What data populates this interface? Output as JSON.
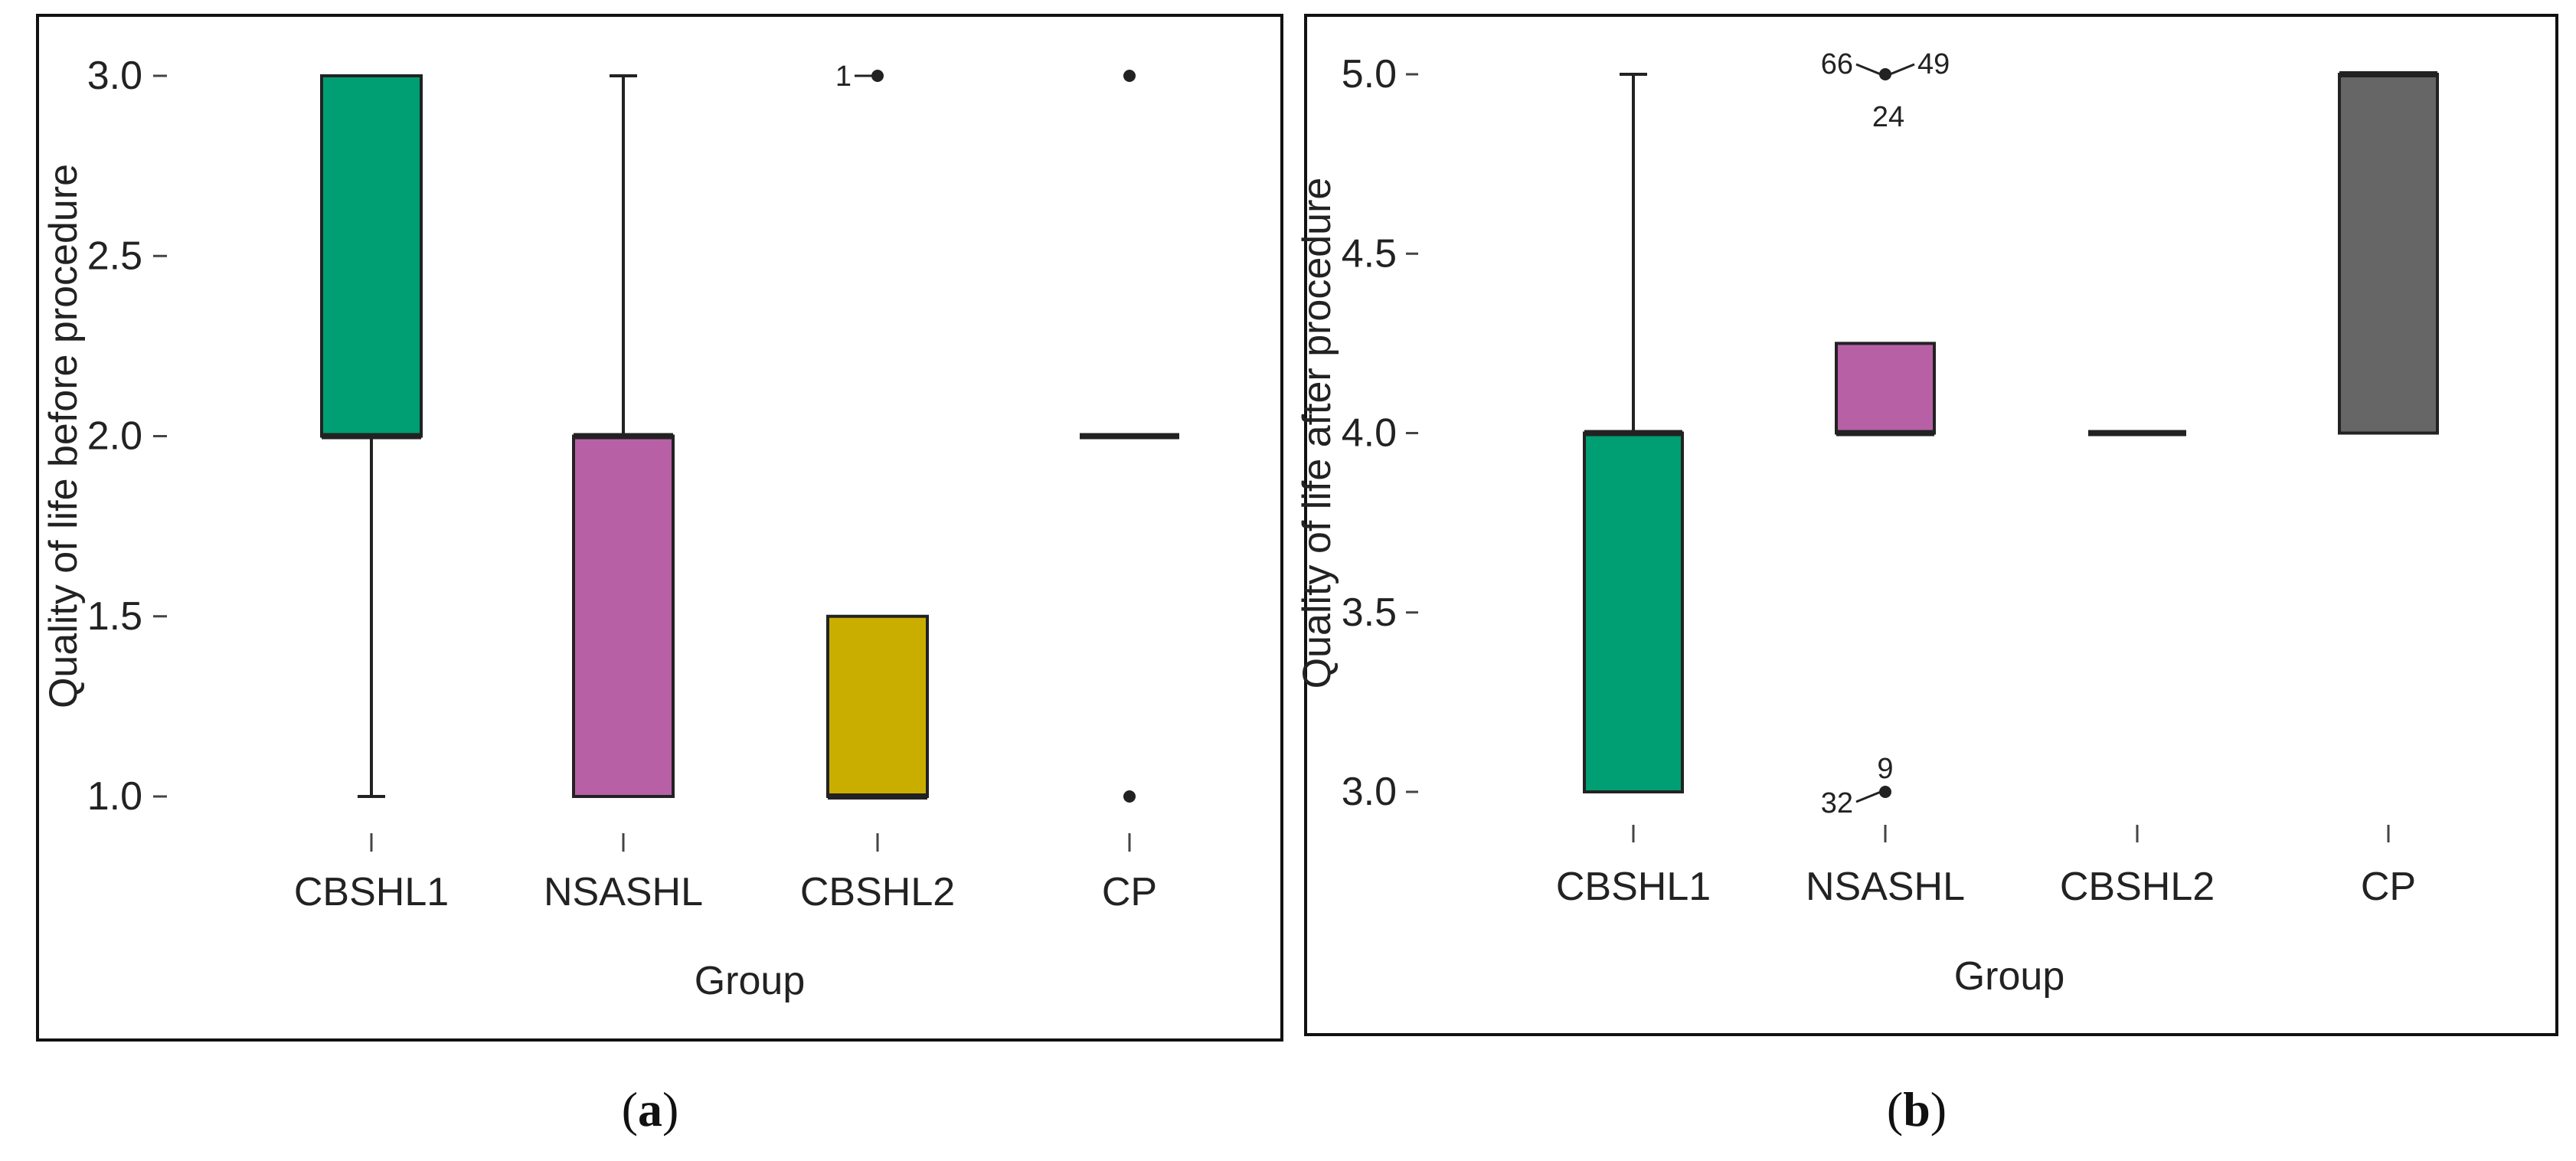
{
  "chart_data": [
    {
      "type": "boxplot",
      "caption": "(a)",
      "caption_letter": "a",
      "xlabel": "Group",
      "ylabel": "Quality of life before procedure",
      "ylim": [
        1.0,
        3.0
      ],
      "yticks": [
        "1.0",
        "1.5",
        "2.0",
        "2.5",
        "3.0"
      ],
      "categories": [
        "CBSHL1",
        "NSASHL",
        "CBSHL2",
        "CP"
      ],
      "boxes": [
        {
          "group": "CBSHL1",
          "color": "#009E73",
          "whisker_low": 1.0,
          "q1": 2.0,
          "median": 2.0,
          "q3": 3.0,
          "whisker_high": 3.0,
          "outliers": []
        },
        {
          "group": "NSASHL",
          "color": "#B760A6",
          "whisker_low": 1.0,
          "q1": 1.0,
          "median": 2.0,
          "q3": 2.0,
          "whisker_high": 3.0,
          "outliers": []
        },
        {
          "group": "CBSHL2",
          "color": "#C9AE00",
          "whisker_low": 1.0,
          "q1": 1.0,
          "median": 1.0,
          "q3": 1.5,
          "whisker_high": 1.5,
          "outliers": [
            {
              "value": 3.0,
              "labels": [
                "1"
              ]
            }
          ]
        },
        {
          "group": "CP",
          "color": "#666666",
          "whisker_low": 2.0,
          "q1": 2.0,
          "median": 2.0,
          "q3": 2.0,
          "whisker_high": 2.0,
          "outliers": [
            {
              "value": 3.0,
              "labels": []
            },
            {
              "value": 1.0,
              "labels": []
            }
          ]
        }
      ]
    },
    {
      "type": "boxplot",
      "caption": "(b)",
      "caption_letter": "b",
      "xlabel": "Group",
      "ylabel": "Quality of life after procedure",
      "ylim": [
        3.0,
        5.0
      ],
      "yticks": [
        "3.0",
        "3.5",
        "4.0",
        "4.5",
        "5.0"
      ],
      "categories": [
        "CBSHL1",
        "NSASHL",
        "CBSHL2",
        "CP"
      ],
      "boxes": [
        {
          "group": "CBSHL1",
          "color": "#009E73",
          "whisker_low": 3.0,
          "q1": 3.0,
          "median": 4.0,
          "q3": 4.0,
          "whisker_high": 5.0,
          "outliers": []
        },
        {
          "group": "NSASHL",
          "color": "#B760A6",
          "whisker_low": 4.0,
          "q1": 4.0,
          "median": 4.0,
          "q3": 4.25,
          "whisker_high": 4.25,
          "outliers": [
            {
              "value": 5.0,
              "labels": [
                "66",
                "49",
                "24"
              ]
            },
            {
              "value": 3.0,
              "labels": [
                "9",
                "32"
              ]
            }
          ]
        },
        {
          "group": "CBSHL2",
          "color": "#C9AE00",
          "whisker_low": 4.0,
          "q1": 4.0,
          "median": 4.0,
          "q3": 4.0,
          "whisker_high": 4.0,
          "outliers": []
        },
        {
          "group": "CP",
          "color": "#666666",
          "whisker_low": 4.0,
          "q1": 4.0,
          "median": 5.0,
          "q3": 5.0,
          "whisker_high": 5.0,
          "outliers": []
        }
      ]
    }
  ]
}
